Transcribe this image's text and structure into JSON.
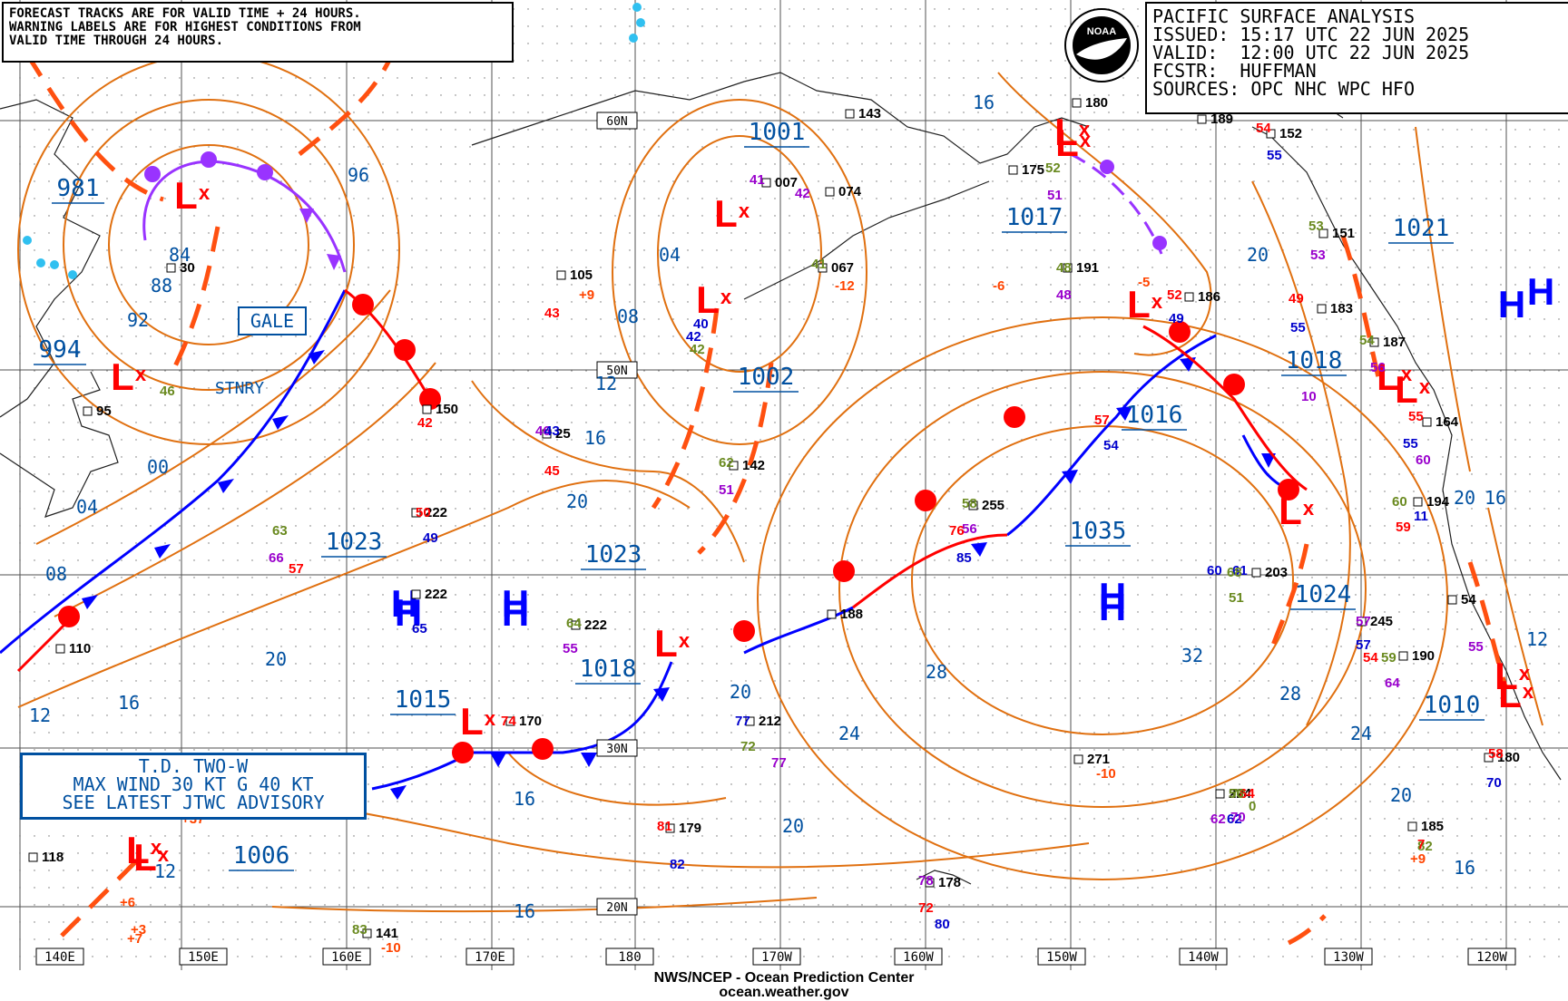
{
  "header": {
    "forecast_note": [
      "FORECAST TRACKS ARE FOR VALID TIME + 24 HOURS.",
      "WARNING LABELS ARE FOR HIGHEST CONDITIONS FROM",
      "VALID TIME THROUGH 24 HOURS."
    ],
    "title": "PACIFIC SURFACE ANALYSIS",
    "issued": "ISSUED: 15:17 UTC 22 JUN 2025",
    "valid": "VALID:  12:00 UTC 22 JUN 2025",
    "forecaster": "FCSTR:  HUFFMAN",
    "sources": "SOURCES: OPC NHC WPC HFO",
    "logo_text": "NOAA"
  },
  "advisory": [
    "T.D. TWO-W",
    "MAX WIND 30 KT G 40 KT",
    "SEE LATEST JTWC ADVISORY"
  ],
  "gale_label": "GALE",
  "stationary_label": "STNRY",
  "footer": {
    "agency": "NWS/NCEP - Ocean Prediction Center",
    "url": "ocean.weather.gov"
  },
  "colors": {
    "isobar": "#e07010",
    "cold_front": "#0000ff",
    "warm_front": "#ff0000",
    "occluded": "#9933ff",
    "trough": "#ff5010",
    "label_blue": "#0050a0"
  },
  "longitude_labels": [
    "140E",
    "150E",
    "160E",
    "170E",
    "180",
    "170W",
    "160W",
    "150W",
    "140W",
    "130W",
    "120W"
  ],
  "latitude_labels": [
    "60N",
    "50N",
    "30N",
    "20N"
  ],
  "pressure_centers": [
    {
      "type": "L",
      "value": "981"
    },
    {
      "type": "L",
      "value": "994"
    },
    {
      "type": "L",
      "value": "1001"
    },
    {
      "type": "L",
      "value": "1002"
    },
    {
      "type": "L",
      "value": "1017"
    },
    {
      "type": "L",
      "value": "1016"
    },
    {
      "type": "L",
      "value": "1018"
    },
    {
      "type": "L",
      "value": "1010"
    },
    {
      "type": "L",
      "value": "1006"
    },
    {
      "type": "L",
      "value": "1015"
    },
    {
      "type": "L",
      "value": "1018"
    },
    {
      "type": "H",
      "value": "1023"
    },
    {
      "type": "H",
      "value": "1023"
    },
    {
      "type": "H",
      "value": "1035"
    },
    {
      "type": "H",
      "value": "1024"
    },
    {
      "type": "H",
      "value": "1021"
    }
  ],
  "isobar_labels": [
    "4",
    "96",
    "84",
    "88",
    "92",
    "04",
    "08",
    "12",
    "16",
    "20",
    "00",
    "04",
    "08",
    "12",
    "16",
    "20",
    "20",
    "24",
    "28",
    "32",
    "28",
    "24",
    "20",
    "16",
    "12",
    "16",
    "20",
    "16",
    "12",
    "20",
    "16",
    "16",
    "20"
  ],
  "station_obs": [
    "30",
    "105",
    "007",
    "074",
    "067",
    "143",
    "150",
    "95",
    "25",
    "142",
    "222",
    "222",
    "222",
    "188",
    "170",
    "212",
    "179",
    "141",
    "178",
    "255",
    "191",
    "175",
    "180",
    "189",
    "152",
    "151",
    "186",
    "183",
    "187",
    "164",
    "194",
    "203",
    "245",
    "190",
    "180",
    "185",
    "224",
    "271",
    "54",
    "110",
    "118",
    "60",
    "46",
    "41",
    "42",
    "40",
    "41",
    "42",
    "43",
    "42",
    "42",
    "46",
    "45",
    "43",
    "62",
    "51",
    "50",
    "49",
    "63",
    "66",
    "57",
    "65",
    "64",
    "55",
    "74",
    "77",
    "72",
    "77",
    "81",
    "82",
    "83",
    "78",
    "72",
    "80",
    "58",
    "56",
    "57",
    "54",
    "48",
    "48",
    "52",
    "49",
    "52",
    "51",
    "54",
    "55",
    "53",
    "53",
    "49",
    "55",
    "54",
    "56",
    "55",
    "55",
    "60",
    "60",
    "59",
    "61",
    "51",
    "57",
    "54",
    "57",
    "59",
    "64",
    "58",
    "70",
    "72",
    "62",
    "64",
    "62",
    "56",
    "70",
    "76",
    "85",
    "82",
    "+9",
    "+6",
    "+3",
    "+7",
    "+9",
    "+37",
    "-10",
    "-12",
    "-6",
    "-5",
    "-10",
    "0",
    "10",
    "7",
    "11",
    "68",
    "55"
  ]
}
